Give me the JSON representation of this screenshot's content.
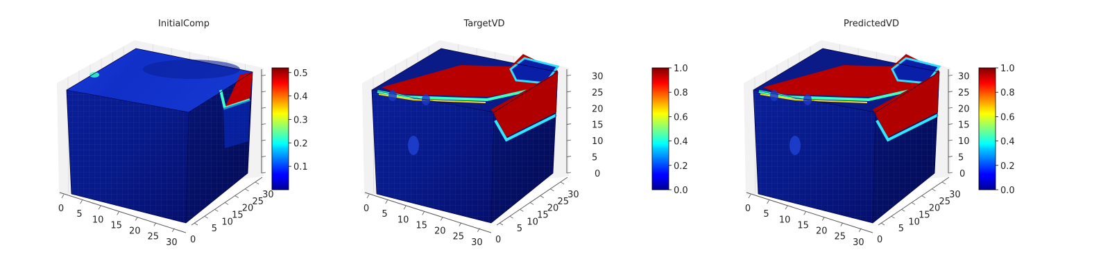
{
  "figure": {
    "colormap": "jet",
    "axis_pane_color": "#f2f2f2",
    "axis_line_color": "#555555"
  },
  "chart_data": [
    {
      "type": "heatmap",
      "subtype": "3d-voxel-cube",
      "title": "InitialComp",
      "x_ticks": [
        "0",
        "5",
        "10",
        "15",
        "20",
        "25",
        "30"
      ],
      "y_ticks": [
        "0",
        "5",
        "10",
        "15",
        "20",
        "25",
        "30"
      ],
      "z_ticks": [],
      "xlim": [
        0,
        32
      ],
      "ylim": [
        0,
        32
      ],
      "zlim": [
        0,
        32
      ],
      "colorbar": {
        "min": 0.0,
        "max": 0.52,
        "ticks": [
          "0.1",
          "0.2",
          "0.3",
          "0.4",
          "0.5"
        ],
        "tick_values": [
          0.1,
          0.2,
          0.3,
          0.4,
          0.5
        ]
      },
      "features": [
        "low value (~0.05) throughout",
        "high values (~0.5) at top-right corner edge"
      ]
    },
    {
      "type": "heatmap",
      "subtype": "3d-voxel-cube",
      "title": "TargetVD",
      "x_ticks": [
        "0",
        "5",
        "10",
        "15",
        "20",
        "25",
        "30"
      ],
      "y_ticks": [
        "0",
        "5",
        "10",
        "15",
        "20",
        "25",
        "30"
      ],
      "z_ticks": [
        "0",
        "5",
        "10",
        "15",
        "20",
        "25",
        "30"
      ],
      "xlim": [
        0,
        32
      ],
      "ylim": [
        0,
        32
      ],
      "zlim": [
        0,
        32
      ],
      "colorbar": {
        "min": 0.0,
        "max": 1.0,
        "ticks": [
          "0.0",
          "0.2",
          "0.4",
          "0.6",
          "0.8",
          "1.0"
        ],
        "tick_values": [
          0.0,
          0.2,
          0.4,
          0.6,
          0.8,
          1.0
        ]
      },
      "features": [
        "value ~0 in interior",
        "value ~1 on top face in a curved band and right-side corner region"
      ]
    },
    {
      "type": "heatmap",
      "subtype": "3d-voxel-cube",
      "title": "PredictedVD",
      "x_ticks": [
        "0",
        "5",
        "10",
        "15",
        "20",
        "25",
        "30"
      ],
      "y_ticks": [
        "0",
        "5",
        "10",
        "15",
        "20",
        "25",
        "30"
      ],
      "z_ticks": [
        "0",
        "5",
        "10",
        "15",
        "20",
        "25",
        "30"
      ],
      "xlim": [
        0,
        32
      ],
      "ylim": [
        0,
        32
      ],
      "zlim": [
        0,
        32
      ],
      "colorbar": {
        "min": 0.0,
        "max": 1.0,
        "ticks": [
          "0.0",
          "0.2",
          "0.4",
          "0.6",
          "0.8",
          "1.0"
        ],
        "tick_values": [
          0.0,
          0.2,
          0.4,
          0.6,
          0.8,
          1.0
        ]
      },
      "features": [
        "value ~0 in interior",
        "value ~1 on top face in a curved band and right-side corner region"
      ]
    }
  ]
}
